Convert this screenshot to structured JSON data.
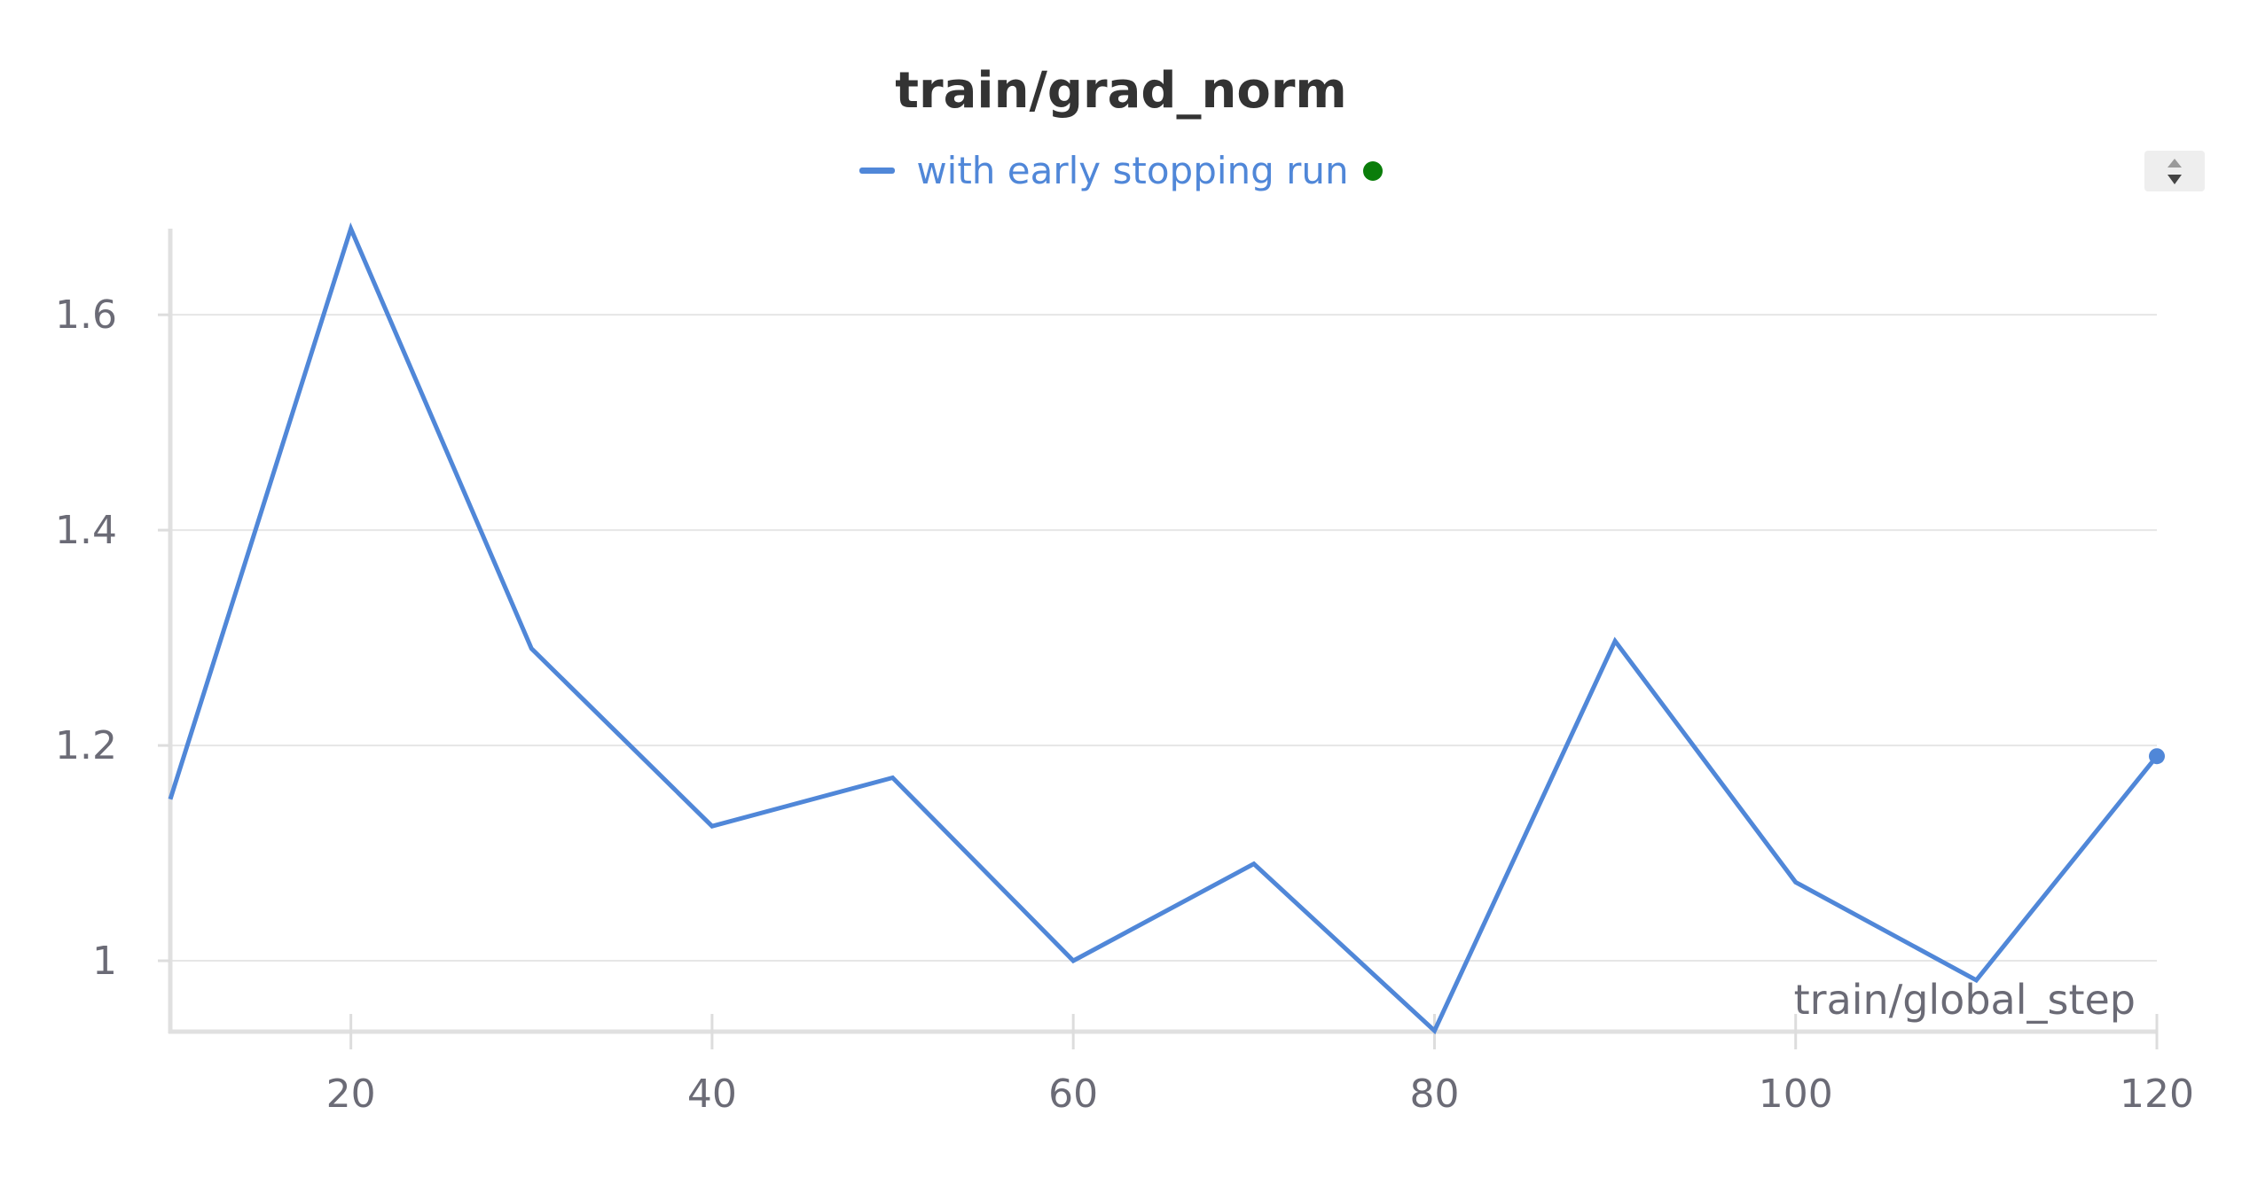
{
  "chart_data": {
    "type": "line",
    "title": "train/grad_norm",
    "xlabel": "train/global_step",
    "ylabel": "",
    "x": [
      10,
      20,
      30,
      40,
      50,
      60,
      70,
      80,
      90,
      100,
      110,
      120
    ],
    "series": [
      {
        "name": "with early stopping run",
        "color": "#5087d8",
        "values": [
          1.15,
          1.68,
          1.29,
          1.125,
          1.17,
          1.0,
          1.09,
          0.935,
          1.297,
          1.073,
          0.982,
          1.19
        ]
      }
    ],
    "xlim": [
      10,
      120
    ],
    "ylim": [
      0.935,
      1.68
    ],
    "xticks": [
      20,
      40,
      60,
      80,
      100,
      120
    ],
    "yticks": [
      1,
      1.2,
      1.4,
      1.6
    ],
    "ytick_labels": [
      "1",
      "1.2",
      "1.4",
      "1.6"
    ],
    "grid": true,
    "legend_position": "top-center"
  },
  "legend": {
    "status_dot_color": "#0a7d0a",
    "status_icon": "status-dot-icon"
  },
  "controls": {
    "sort_icon": "sort-arrows-icon"
  }
}
